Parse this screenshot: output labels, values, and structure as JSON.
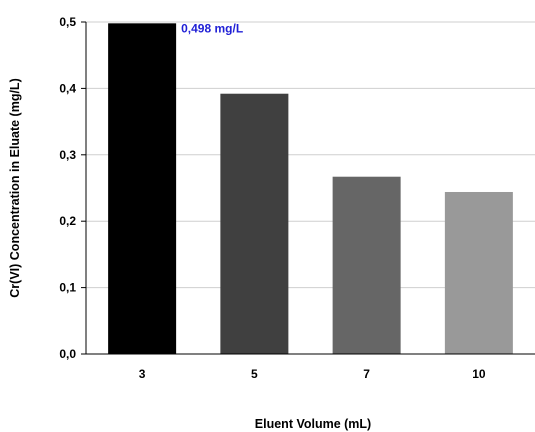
{
  "chart_data": {
    "type": "bar",
    "categories": [
      "3",
      "5",
      "7",
      "10"
    ],
    "values": [
      0.498,
      0.392,
      0.267,
      0.244
    ],
    "colors": [
      "#000000",
      "#404040",
      "#666666",
      "#999999"
    ],
    "xlabel": "Eluent Volume (mL)",
    "ylabel": "Cr(VI) Concentration in Eluate (mg/L)",
    "ylim": [
      0,
      0.5
    ],
    "yticks": [
      0,
      0.1,
      0.2,
      0.3,
      0.4,
      0.5
    ],
    "ytick_labels": [
      "0,0",
      "0,1",
      "0,2",
      "0,3",
      "0,4",
      "0,5"
    ],
    "grid": true,
    "annotations": [
      {
        "category": "3",
        "text": "0,498 mg/L",
        "color": "#1f1fd6"
      }
    ]
  }
}
